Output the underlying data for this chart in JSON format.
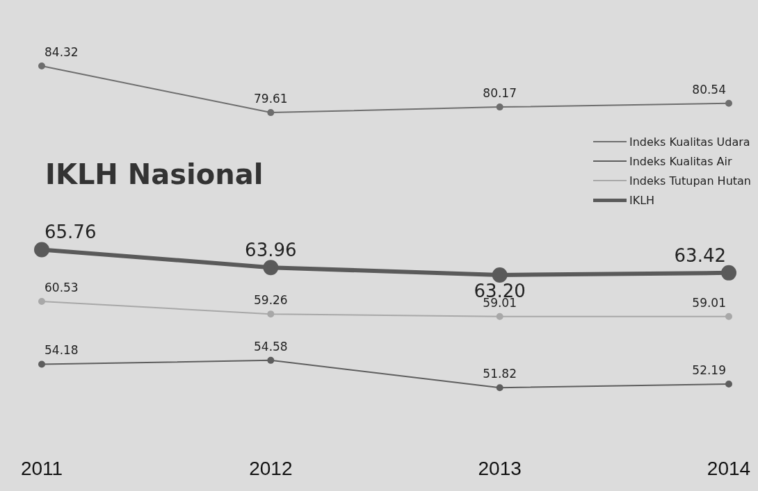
{
  "chart_data": {
    "type": "line",
    "title": "IKLH Nasional",
    "categories": [
      "2011",
      "2012",
      "2013",
      "2014"
    ],
    "series": [
      {
        "name": "Indeks Kualitas Udara",
        "color": "#6e6e6e",
        "values": [
          84.32,
          79.61,
          80.17,
          80.54
        ],
        "value_labels": [
          "84.32",
          "79.61",
          "80.17",
          "80.54"
        ]
      },
      {
        "name": "Indeks Kualitas Air",
        "color": "#5e5e5e",
        "values": [
          54.18,
          54.58,
          51.82,
          52.19
        ],
        "value_labels": [
          "54.18",
          "54.58",
          "51.82",
          "52.19"
        ]
      },
      {
        "name": "Indeks Tutupan Hutan",
        "color": "#a8a8a8",
        "values": [
          60.53,
          59.26,
          59.01,
          59.01
        ],
        "value_labels": [
          "60.53",
          "59.26",
          "59.01",
          "59.01"
        ]
      },
      {
        "name": "IKLH",
        "color": "#5a5a5a",
        "values": [
          65.76,
          63.96,
          63.2,
          63.42
        ],
        "value_labels": [
          "65.76",
          "63.96",
          "63.20",
          "63.42"
        ]
      }
    ],
    "legend": "top right",
    "grid": false,
    "marker": "circle",
    "line_style": "solid"
  }
}
